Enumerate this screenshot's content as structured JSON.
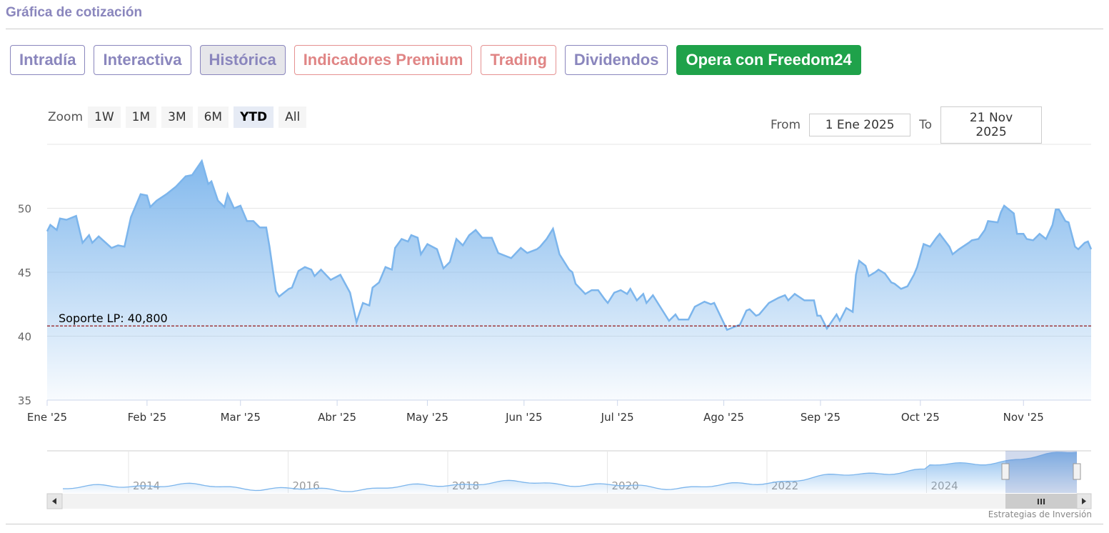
{
  "header": {
    "title": "Gráfica de cotización"
  },
  "tabs": [
    {
      "label": "Intradía",
      "style": "normal"
    },
    {
      "label": "Interactiva",
      "style": "normal"
    },
    {
      "label": "Histórica",
      "style": "active"
    },
    {
      "label": "Indicadores Premium",
      "style": "red"
    },
    {
      "label": "Trading",
      "style": "red"
    },
    {
      "label": "Dividendos",
      "style": "normal"
    },
    {
      "label": "Opera con Freedom24",
      "style": "green"
    }
  ],
  "zoom": {
    "label": "Zoom",
    "buttons": [
      "1W",
      "1M",
      "3M",
      "6M",
      "YTD",
      "All"
    ],
    "selected": "YTD"
  },
  "range": {
    "from_label": "From",
    "from": "1 Ene 2025",
    "to_label": "To",
    "to": "21 Nov 2025"
  },
  "credit": "Estrategias de Inversión",
  "colors": {
    "line": "#7cb5ec",
    "support": "#8b0000",
    "accent": "#8a86bd"
  },
  "chart_data": {
    "type": "area",
    "xlabel": "",
    "ylabel": "",
    "ylim": [
      35,
      55
    ],
    "yticks": [
      35,
      40,
      45,
      50
    ],
    "xunit": "day of 2025",
    "xlim": [
      0,
      324
    ],
    "xticks": [
      {
        "label": "Ene '25",
        "day": 0
      },
      {
        "label": "Feb '25",
        "day": 31
      },
      {
        "label": "Mar '25",
        "day": 60
      },
      {
        "label": "Abr '25",
        "day": 90
      },
      {
        "label": "May '25",
        "day": 118
      },
      {
        "label": "Jun '25",
        "day": 148
      },
      {
        "label": "Jul '25",
        "day": 177
      },
      {
        "label": "Ago '25",
        "day": 210
      },
      {
        "label": "Sep '25",
        "day": 240
      },
      {
        "label": "Oct '25",
        "day": 271
      },
      {
        "label": "Nov '25",
        "day": 303
      }
    ],
    "support": {
      "label": "Soporte LP: 40,800",
      "value": 40.8
    },
    "x": [
      0,
      1,
      3,
      4,
      6,
      9,
      11,
      13,
      14,
      16,
      20,
      22,
      24,
      26,
      29,
      31,
      32,
      34,
      37,
      40,
      43,
      45,
      48,
      50,
      51,
      53,
      55,
      56,
      58,
      60,
      62,
      64,
      66,
      68,
      69,
      71,
      72,
      75,
      76,
      78,
      80,
      82,
      83,
      85,
      88,
      91,
      94,
      96,
      98,
      100,
      101,
      103,
      105,
      107,
      108,
      110,
      112,
      113,
      115,
      116,
      118,
      121,
      123,
      125,
      127,
      129,
      131,
      133,
      135,
      138,
      140,
      143,
      144,
      147,
      149,
      152,
      153,
      155,
      157,
      159,
      162,
      163,
      164,
      167,
      169,
      171,
      173,
      174,
      176,
      178,
      180,
      181,
      183,
      185,
      186,
      188,
      190,
      193,
      195,
      196,
      199,
      201,
      204,
      206,
      207,
      211,
      213,
      215,
      217,
      218,
      220,
      221,
      224,
      227,
      229,
      230,
      232,
      235,
      238,
      239,
      240,
      242,
      245,
      246,
      248,
      250,
      251,
      252,
      254,
      255,
      257,
      258,
      260,
      262,
      263,
      265,
      267,
      269,
      270,
      272,
      274,
      276,
      277,
      280,
      281,
      283,
      286,
      287,
      289,
      291,
      292,
      295,
      296,
      297,
      300,
      301,
      303,
      304,
      306,
      308,
      310,
      312,
      313,
      314,
      316,
      317,
      319,
      320,
      322,
      323,
      324
    ],
    "values": [
      48.2,
      48.7,
      48.3,
      49.2,
      49.1,
      49.4,
      47.3,
      47.9,
      47.3,
      47.8,
      46.9,
      47.1,
      47.0,
      49.3,
      51.1,
      51.0,
      50.1,
      50.6,
      51.1,
      51.7,
      52.5,
      52.6,
      53.7,
      51.9,
      52.1,
      50.6,
      50.1,
      51.1,
      50.0,
      50.2,
      49.0,
      49.0,
      48.5,
      48.5,
      47.0,
      43.5,
      43.1,
      43.7,
      43.8,
      45.1,
      45.4,
      45.2,
      44.7,
      45.2,
      44.4,
      44.8,
      43.4,
      41.1,
      42.6,
      42.4,
      43.8,
      44.2,
      45.4,
      45.2,
      46.9,
      47.6,
      47.4,
      47.9,
      47.7,
      46.4,
      47.2,
      46.8,
      45.3,
      45.8,
      47.6,
      47.1,
      47.9,
      48.3,
      47.7,
      47.7,
      46.5,
      46.2,
      46.1,
      46.9,
      46.5,
      46.8,
      47.0,
      47.6,
      48.4,
      46.4,
      45.2,
      45.0,
      44.1,
      43.3,
      43.6,
      43.6,
      42.9,
      42.6,
      43.4,
      43.6,
      43.3,
      43.7,
      42.8,
      43.3,
      42.6,
      43.2,
      42.4,
      41.2,
      41.7,
      41.3,
      41.3,
      42.3,
      42.7,
      42.5,
      42.6,
      40.5,
      40.7,
      40.9,
      42.0,
      42.1,
      41.6,
      41.7,
      42.6,
      43.0,
      43.2,
      42.8,
      43.3,
      42.8,
      42.8,
      41.6,
      41.6,
      40.6,
      41.7,
      41.2,
      42.2,
      41.9,
      44.8,
      45.9,
      45.5,
      44.7,
      45.0,
      45.2,
      44.9,
      44.2,
      44.1,
      43.7,
      43.9,
      44.8,
      45.4,
      47.2,
      47.0,
      47.7,
      48.0,
      47.0,
      46.4,
      46.8,
      47.3,
      47.5,
      47.6,
      48.3,
      49.0,
      48.9,
      49.7,
      50.2,
      49.6,
      48.0,
      48.0,
      47.6,
      47.5,
      48.0,
      47.6,
      48.7,
      49.9,
      49.9,
      49.0,
      48.9,
      47.0,
      46.8,
      47.3,
      47.4,
      46.8
    ],
    "navigator": {
      "xticks": [
        "2014",
        "2016",
        "2018",
        "2020",
        "2022",
        "2024"
      ]
    }
  }
}
